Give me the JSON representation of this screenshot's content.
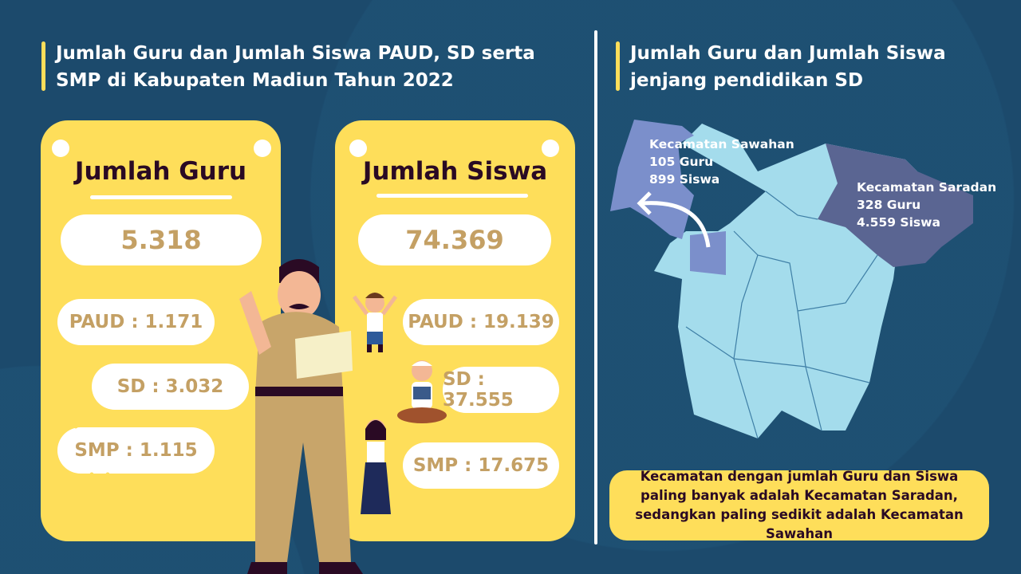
{
  "left_title": "Jumlah Guru dan Jumlah Siswa PAUD, SD serta SMP di Kabupaten Madiun Tahun 2022",
  "right_title": "Jumlah Guru dan Jumlah Siswa jenjang pendidikan SD",
  "guru": {
    "title": "Jumlah Guru",
    "total": "5.318",
    "paud": "PAUD : 1.171",
    "sd": "SD : 3.032",
    "smp": "SMP : 1.115"
  },
  "siswa": {
    "title": "Jumlah Siswa",
    "total": "74.369",
    "paud": "PAUD : 19.139",
    "sd": "SD : 37.555",
    "smp": "SMP : 17.675"
  },
  "map": {
    "sawahan": {
      "name": "Kecamatan Sawahan",
      "guru": "105 Guru",
      "siswa": "899 Siswa",
      "color": "#7b8fcb"
    },
    "saradan": {
      "name": "Kecamatan Saradan",
      "guru": "328 Guru",
      "siswa": "4.559 Siswa",
      "color": "#5a6592"
    },
    "base_color": "#a4dcec"
  },
  "conclusion": "Kecamatan dengan jumlah Guru dan Siswa paling banyak adalah Kecamatan Saradan, sedangkan paling sedikit adalah Kecamatan Sawahan",
  "colors": {
    "background": "#1c4a6c",
    "card": "#fede5a",
    "number": "#c4a064",
    "heading": "#2a0a24"
  }
}
